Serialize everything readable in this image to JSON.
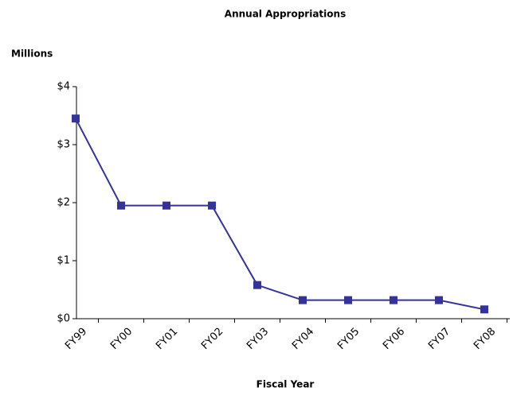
{
  "chart_data": {
    "type": "line",
    "title": "Annual Appropriations",
    "y_label": "Millions",
    "x_label": "Fiscal Year",
    "categories": [
      "FY99",
      "FY00",
      "FY01",
      "FY02",
      "FY03",
      "FY04",
      "FY05",
      "FY06",
      "FY07",
      "FY08"
    ],
    "series": [
      {
        "name": "Annual Appropriations",
        "color": "#333399",
        "values": [
          3.45,
          1.95,
          1.95,
          1.95,
          0.58,
          0.32,
          0.32,
          0.32,
          0.32,
          0.16
        ]
      }
    ],
    "ylim": [
      0,
      4
    ],
    "yticks": [
      {
        "value": 0,
        "label": "$0"
      },
      {
        "value": 1,
        "label": "$1"
      },
      {
        "value": 2,
        "label": "$2"
      },
      {
        "value": 3,
        "label": "$3"
      },
      {
        "value": 4,
        "label": "$4"
      }
    ],
    "grid": false
  }
}
